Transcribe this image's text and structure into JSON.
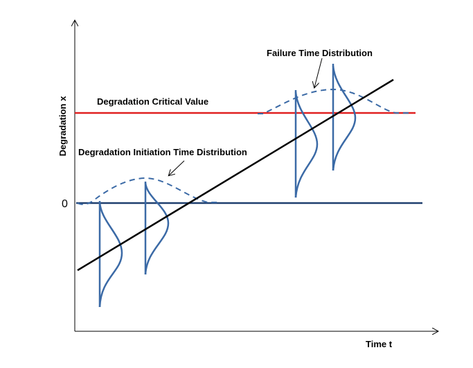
{
  "labels": {
    "y_axis": "Degradation x",
    "x_axis": "Time t",
    "zero": "0",
    "critical_value": "Degradation Critical Value",
    "initiation_distribution": "Degradation Initiation Time Distribution",
    "failure_distribution": "Failure Time Distribution"
  },
  "colors": {
    "axis": "#000000",
    "critical_line": "#e02020",
    "baseline": "#1f3f6e",
    "trend_line": "#000000",
    "distribution_curve": "#3b6aa6",
    "annotation": "#000000"
  }
}
